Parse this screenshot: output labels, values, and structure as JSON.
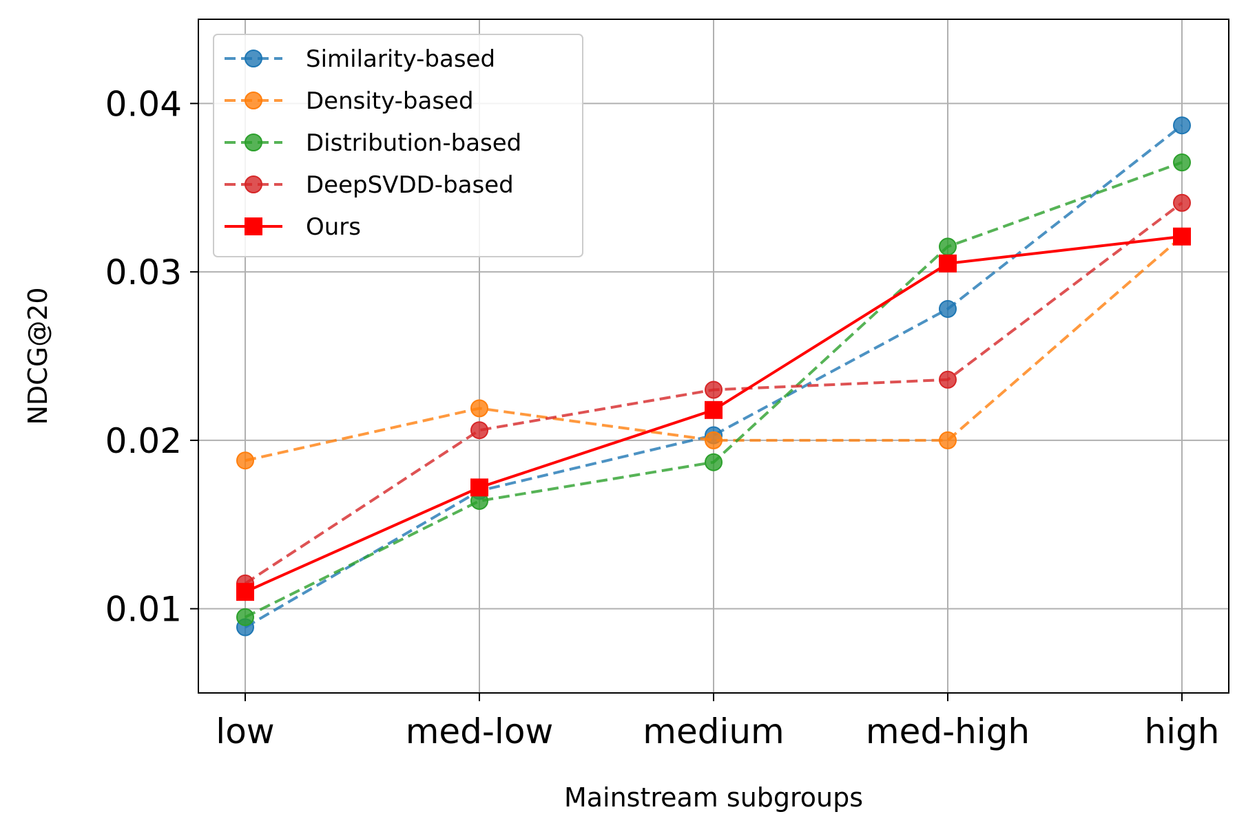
{
  "chart_data": {
    "type": "line",
    "xlabel": "Mainstream subgroups",
    "ylabel": "NDCG@20",
    "categories": [
      "low",
      "med-low",
      "medium",
      "med-high",
      "high"
    ],
    "ylim": [
      0.005,
      0.045
    ],
    "yticks": [
      0.01,
      0.02,
      0.03,
      0.04
    ],
    "ytick_labels": [
      "0.01",
      "0.02",
      "0.03",
      "0.04"
    ],
    "grid": true,
    "legend_position": "top-left",
    "series": [
      {
        "name": "Similarity-based",
        "color": "#1f77b4",
        "style": "dashed",
        "marker": "circle",
        "values": [
          0.0089,
          0.017,
          0.0203,
          0.0278,
          0.0387
        ]
      },
      {
        "name": "Density-based",
        "color": "#ff7f0e",
        "style": "dashed",
        "marker": "circle",
        "values": [
          0.0188,
          0.0219,
          0.02,
          0.02,
          0.0321
        ]
      },
      {
        "name": "Distribution-based",
        "color": "#2ca02c",
        "style": "dashed",
        "marker": "circle",
        "values": [
          0.0095,
          0.0164,
          0.0187,
          0.0315,
          0.0365
        ]
      },
      {
        "name": "DeepSVDD-based",
        "color": "#d62728",
        "style": "dashed",
        "marker": "circle",
        "values": [
          0.0115,
          0.0206,
          0.023,
          0.0236,
          0.0341
        ]
      },
      {
        "name": "Ours",
        "color": "#ff0000",
        "style": "solid",
        "marker": "square",
        "values": [
          0.011,
          0.0172,
          0.0218,
          0.0305,
          0.0321
        ]
      }
    ]
  }
}
